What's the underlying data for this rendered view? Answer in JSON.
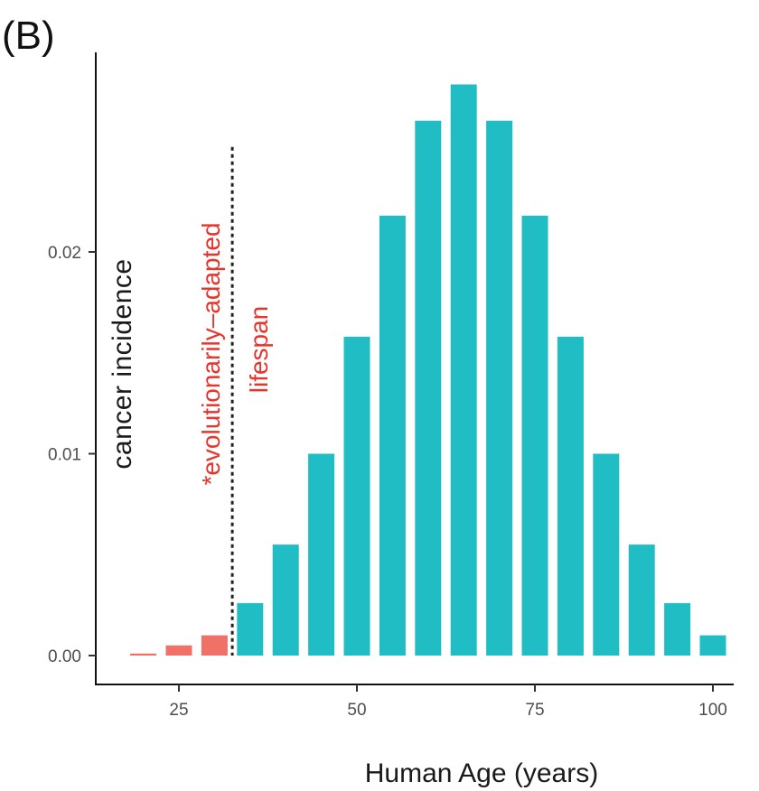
{
  "panel_label": "(B)",
  "chart_data": {
    "type": "bar",
    "xlabel": "Human Age (years)",
    "ylabel": "cancer incidence",
    "x_ticks": [
      25,
      50,
      75,
      100
    ],
    "y_ticks": [
      "0.00",
      "0.01",
      "0.02"
    ],
    "xlim": [
      15,
      105
    ],
    "ylim": [
      0,
      0.03
    ],
    "grid": false,
    "x": [
      20,
      25,
      30,
      35,
      40,
      45,
      50,
      55,
      60,
      65,
      70,
      75,
      80,
      85,
      90,
      95,
      100
    ],
    "values": [
      0.0001,
      0.0005,
      0.001,
      0.0026,
      0.0055,
      0.01,
      0.0158,
      0.0218,
      0.0265,
      0.0283,
      0.0265,
      0.0218,
      0.0158,
      0.01,
      0.0055,
      0.0026,
      0.001
    ],
    "colors": {
      "before_cutoff": "#f07167",
      "after_cutoff": "#20bec4",
      "cutoff_line": "#222222",
      "annotation": "#e8352b"
    },
    "cutoff_age": 32.5,
    "cutoff_top_value": 0.0252,
    "annotation": {
      "line1": "*evolutionarily–adapted",
      "line2": "lifespan"
    }
  }
}
